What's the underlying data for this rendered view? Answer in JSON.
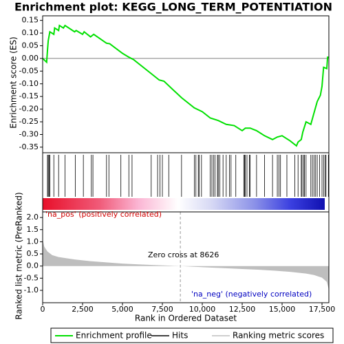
{
  "chart_data": {
    "type": "gsea",
    "title": "Enrichment plot: KEGG_LONG_TERM_POTENTIATION",
    "x_label": "Rank in Ordered Dataset",
    "y_label": "Enrichment score (ES)",
    "y2_label": "Ranked list metric (PreRanked)",
    "pos_label": "'na_pos' (positively correlated)",
    "neg_label": "'na_neg' (negatively correlated)",
    "zero_cross_label": "Zero cross at 8626",
    "zero_cross": 8626,
    "xlim": [
      0,
      17930
    ],
    "xticks": [
      0,
      {
        "value": 2500,
        "label": "2,500"
      },
      {
        "value": 5000,
        "label": "5,000"
      },
      {
        "value": 7500,
        "label": "7,500"
      },
      {
        "value": 10000,
        "label": "10,000"
      },
      {
        "value": 12500,
        "label": "12,500"
      },
      {
        "value": 15000,
        "label": "15,000"
      },
      {
        "value": 17500,
        "label": "17,500"
      }
    ],
    "ylim": [
      -0.372,
      0.168
    ],
    "yticks": [
      {
        "value": 0.15,
        "label": "0.15"
      },
      {
        "value": 0.1,
        "label": "0.10"
      },
      {
        "value": 0.05,
        "label": "0.05"
      },
      {
        "value": 0,
        "label": "0.00"
      },
      {
        "value": -0.05,
        "label": "-0.05"
      },
      {
        "value": -0.1,
        "label": "-0.10"
      },
      {
        "value": -0.15,
        "label": "-0.15"
      },
      {
        "value": -0.2,
        "label": "-0.20"
      },
      {
        "value": -0.25,
        "label": "-0.25"
      },
      {
        "value": -0.3,
        "label": "-0.30"
      },
      {
        "value": -0.35,
        "label": "-0.35"
      }
    ],
    "y2lim": [
      -1.51,
      2.23
    ],
    "y2ticks": [
      {
        "value": 2,
        "label": "2.0"
      },
      {
        "value": 1.5,
        "label": "1.5"
      },
      {
        "value": 1,
        "label": "1.0"
      },
      {
        "value": 0.5,
        "label": "0.5"
      },
      {
        "value": 0,
        "label": "0.0"
      },
      {
        "value": -0.5,
        "label": "-0.5"
      },
      {
        "value": -1,
        "label": "-1.0"
      }
    ],
    "series": [
      {
        "name": "Enrichment profile",
        "color": "#00e000",
        "x": [
          0,
          250,
          300,
          350,
          450,
          700,
          750,
          1000,
          1050,
          1300,
          1400,
          2000,
          2100,
          2500,
          2600,
          3000,
          3200,
          4000,
          4200,
          5000,
          5400,
          5700,
          6800,
          7300,
          7600,
          8700,
          9500,
          10000,
          10500,
          11000,
          11500,
          12000,
          12500,
          12700,
          13000,
          13400,
          13900,
          14400,
          14700,
          15000,
          15500,
          15900,
          16000,
          16200,
          16300,
          16500,
          16800,
          17000,
          17200,
          17400,
          17500,
          17600,
          17800,
          17850,
          17950
        ],
        "values": [
          0,
          -0.015,
          0.03,
          0.07,
          0.105,
          0.095,
          0.12,
          0.11,
          0.13,
          0.12,
          0.13,
          0.105,
          0.11,
          0.095,
          0.105,
          0.085,
          0.095,
          0.06,
          0.058,
          0.02,
          0.005,
          -0.005,
          -0.06,
          -0.085,
          -0.09,
          -0.155,
          -0.195,
          -0.21,
          -0.235,
          -0.245,
          -0.26,
          -0.265,
          -0.285,
          -0.275,
          -0.275,
          -0.285,
          -0.305,
          -0.32,
          -0.31,
          -0.305,
          -0.325,
          -0.345,
          -0.33,
          -0.32,
          -0.29,
          -0.25,
          -0.26,
          -0.215,
          -0.17,
          -0.145,
          -0.11,
          -0.035,
          -0.04,
          0.005,
          0.005
        ]
      },
      {
        "name": "Hits",
        "color": "#000000",
        "x": [
          300,
          350,
          400,
          450,
          700,
          1000,
          1400,
          2050,
          2550,
          3050,
          3150,
          4000,
          4150,
          4900,
          5400,
          5600,
          6800,
          7200,
          7350,
          7500,
          7900,
          8700,
          9500,
          9600,
          9750,
          9800,
          9950,
          10500,
          10600,
          10700,
          10800,
          10950,
          11000,
          11100,
          11300,
          11500,
          11700,
          11800,
          12100,
          12600,
          12650,
          12700,
          12800,
          12950,
          13000,
          13400,
          13900,
          14400,
          14700,
          14800,
          14900,
          15300,
          15800,
          16000,
          16200,
          16250,
          16350,
          16400,
          16500,
          16800,
          16900,
          17000,
          17100,
          17200,
          17350,
          17500,
          17600,
          17700,
          17750,
          17900
        ]
      },
      {
        "name": "Ranking metric scores",
        "color": "#bebebe",
        "axis": "y2",
        "x": [
          0,
          100,
          300,
          600,
          1000,
          2000,
          3000,
          4000,
          5000,
          6000,
          7000,
          8000,
          8626,
          9500,
          10500,
          11500,
          12500,
          13500,
          14500,
          15500,
          16500,
          17000,
          17500,
          17800,
          17900,
          17950
        ],
        "values": [
          1.1,
          0.8,
          0.6,
          0.45,
          0.37,
          0.27,
          0.2,
          0.15,
          0.1,
          0.07,
          0.04,
          0.015,
          0,
          -0.03,
          -0.06,
          -0.09,
          -0.12,
          -0.15,
          -0.19,
          -0.24,
          -0.31,
          -0.37,
          -0.48,
          -0.65,
          -0.9,
          -1.25
        ]
      }
    ]
  }
}
